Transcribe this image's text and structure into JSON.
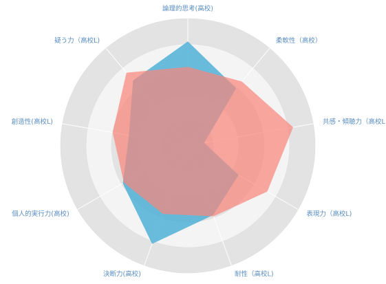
{
  "chart_data": {
    "type": "radar",
    "categories": [
      "論理的思考(高校)",
      "柔軟性（高校）",
      "共感・傾聴力（高校L",
      "表現力（高校L)",
      "耐性（高校L)",
      "決断力(高校)",
      "個人的実行力(高校)",
      "創造性(高校L)",
      "疑う力（高校L)"
    ],
    "series": [
      {
        "color": "#4fb0d6",
        "values": [
          82,
          59,
          13,
          46,
          58,
          82,
          59,
          47,
          67
        ]
      },
      {
        "color": "#f8877c",
        "values": [
          62,
          66,
          84,
          72,
          59,
          57,
          58,
          60,
          75
        ]
      }
    ],
    "ylim": [
      0,
      100
    ],
    "yticks": [
      0,
      20,
      40,
      60,
      80,
      100
    ],
    "grid": true
  }
}
